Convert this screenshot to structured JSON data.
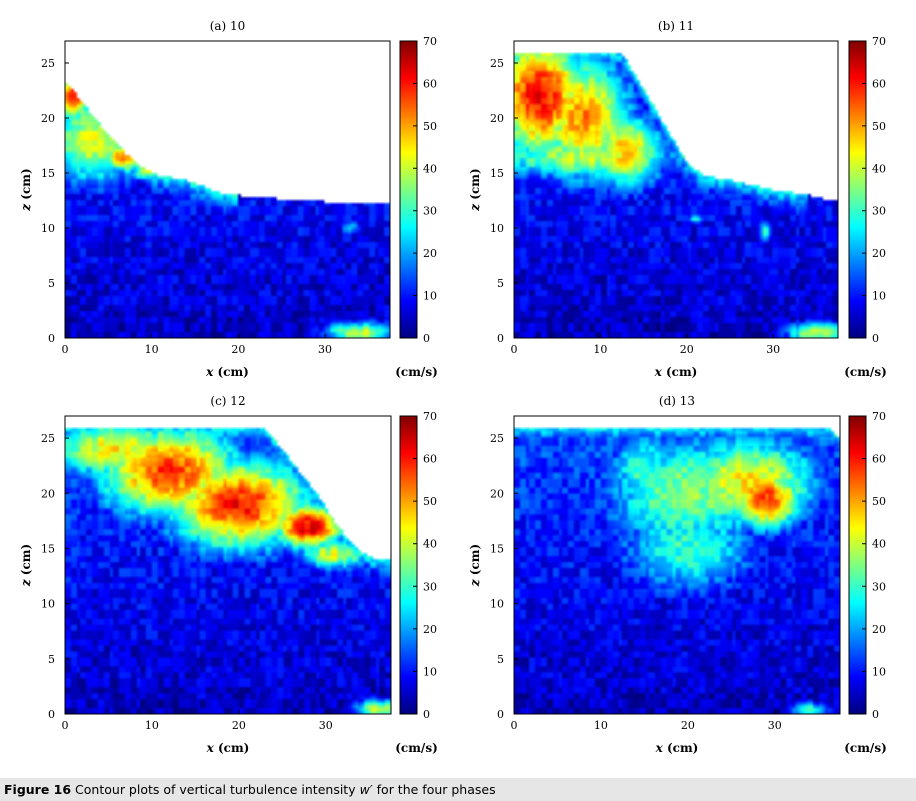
{
  "figure": {
    "caption_label": "Figure 16",
    "caption_text": "Contour plots of vertical turbulence intensity",
    "caption_var": "w′",
    "caption_tail": "for the four phases"
  },
  "chart_data": [
    {
      "type": "heatmap",
      "title": "(a) 10",
      "xlabel_var": "x",
      "xlabel_unit": "(cm)",
      "ylabel_var": "z",
      "ylabel_unit": "(cm)",
      "xlim": [
        0,
        37.5
      ],
      "ylim": [
        0,
        27
      ],
      "xticks": [
        0,
        10,
        20,
        30
      ],
      "yticks": [
        0,
        5,
        10,
        15,
        20,
        25
      ],
      "colorbar": {
        "min": 0,
        "max": 70,
        "ticks": [
          0,
          10,
          20,
          30,
          40,
          50,
          60,
          70
        ],
        "unit": "(cm/s)"
      },
      "colormap": [
        "#00007f",
        "#0000ff",
        "#007fff",
        "#00ffff",
        "#7fff7f",
        "#ffff00",
        "#ff7f00",
        "#ff0000",
        "#7f0000"
      ],
      "domain_boundary": [
        [
          0,
          23.2
        ],
        [
          1.5,
          22
        ],
        [
          3,
          20.5
        ],
        [
          5,
          18.5
        ],
        [
          7,
          16.8
        ],
        [
          9,
          15.5
        ],
        [
          11,
          14.7
        ],
        [
          13.5,
          14.5
        ],
        [
          16,
          13.8
        ],
        [
          18,
          13.2
        ],
        [
          22,
          12.8
        ],
        [
          30,
          12.4
        ],
        [
          37.5,
          12.2
        ]
      ],
      "hotspots": [
        {
          "x": 1,
          "z": 22,
          "sx": 1.5,
          "sz": 1.5,
          "v": 60
        },
        {
          "x": 3.5,
          "z": 18,
          "sx": 4,
          "sz": 3,
          "v": 42
        },
        {
          "x": 7,
          "z": 16.5,
          "sx": 2,
          "sz": 1,
          "v": 55
        },
        {
          "x": 10,
          "z": 15.2,
          "sx": 2,
          "sz": 0.7,
          "v": 40
        },
        {
          "x": 34,
          "z": 0.5,
          "sx": 3,
          "sz": 0.7,
          "v": 40
        },
        {
          "x": 33,
          "z": 10,
          "sx": 1,
          "sz": 0.5,
          "v": 22
        }
      ]
    },
    {
      "type": "heatmap",
      "title": "(b) 11",
      "xlabel_var": "x",
      "xlabel_unit": "(cm)",
      "ylabel_var": "z",
      "ylabel_unit": "(cm)",
      "xlim": [
        0,
        37.5
      ],
      "ylim": [
        0,
        27
      ],
      "xticks": [
        0,
        10,
        20,
        30
      ],
      "yticks": [
        0,
        5,
        10,
        15,
        20,
        25
      ],
      "colorbar": {
        "min": 0,
        "max": 70,
        "ticks": [
          0,
          10,
          20,
          30,
          40,
          50,
          60,
          70
        ],
        "unit": "(cm/s)"
      },
      "colormap": [
        "#00007f",
        "#0000ff",
        "#007fff",
        "#00ffff",
        "#7fff7f",
        "#ffff00",
        "#ff7f00",
        "#ff0000",
        "#7f0000"
      ],
      "domain_boundary": [
        [
          0,
          26
        ],
        [
          12.5,
          26
        ],
        [
          14,
          24
        ],
        [
          15.5,
          22
        ],
        [
          17,
          20
        ],
        [
          18.5,
          18
        ],
        [
          20,
          16
        ],
        [
          22,
          14.8
        ],
        [
          26,
          14.2
        ],
        [
          30,
          13.5
        ],
        [
          34,
          13
        ],
        [
          36.5,
          12.5
        ],
        [
          37.5,
          12.4
        ]
      ],
      "hotspots": [
        {
          "x": 3,
          "z": 22,
          "sx": 4,
          "sz": 4,
          "v": 62
        },
        {
          "x": 8,
          "z": 20,
          "sx": 4,
          "sz": 4,
          "v": 52
        },
        {
          "x": 13,
          "z": 17,
          "sx": 3,
          "sz": 2.5,
          "v": 48
        },
        {
          "x": 8,
          "z": 16.5,
          "sx": 8,
          "sz": 1.5,
          "v": 40
        },
        {
          "x": 21,
          "z": 10.8,
          "sx": 0.6,
          "sz": 0.3,
          "v": 28
        },
        {
          "x": 29,
          "z": 9.7,
          "sx": 0.6,
          "sz": 0.8,
          "v": 28
        },
        {
          "x": 35,
          "z": 0.5,
          "sx": 2.5,
          "sz": 0.7,
          "v": 40
        }
      ]
    },
    {
      "type": "heatmap",
      "title": "(c) 12",
      "xlabel_var": "x",
      "xlabel_unit": "(cm)",
      "ylabel_var": "z",
      "ylabel_unit": "(cm)",
      "xlim": [
        0,
        37.5
      ],
      "ylim": [
        0,
        27
      ],
      "xticks": [
        0,
        10,
        20,
        30
      ],
      "yticks": [
        0,
        5,
        10,
        15,
        20,
        25
      ],
      "colorbar": {
        "min": 0,
        "max": 70,
        "ticks": [
          0,
          10,
          20,
          30,
          40,
          50,
          60,
          70
        ],
        "unit": "(cm/s)"
      },
      "colormap": [
        "#00007f",
        "#0000ff",
        "#007fff",
        "#00ffff",
        "#7fff7f",
        "#ffff00",
        "#ff7f00",
        "#ff0000",
        "#7f0000"
      ],
      "domain_boundary": [
        [
          0,
          26
        ],
        [
          23,
          26
        ],
        [
          25,
          24
        ],
        [
          27,
          22
        ],
        [
          29,
          20
        ],
        [
          31,
          17.5
        ],
        [
          33,
          15.5
        ],
        [
          35,
          14.2
        ],
        [
          37.5,
          14
        ]
      ],
      "hotspots": [
        {
          "x": 12,
          "z": 22,
          "sx": 6,
          "sz": 3,
          "v": 58
        },
        {
          "x": 20,
          "z": 19,
          "sx": 6,
          "sz": 3,
          "v": 60
        },
        {
          "x": 28,
          "z": 17,
          "sx": 3,
          "sz": 1.5,
          "v": 64
        },
        {
          "x": 6,
          "z": 24,
          "sx": 6,
          "sz": 2,
          "v": 45
        },
        {
          "x": 31,
          "z": 14.5,
          "sx": 3,
          "sz": 1,
          "v": 42
        },
        {
          "x": 36,
          "z": 0.5,
          "sx": 2,
          "sz": 0.6,
          "v": 40
        }
      ]
    },
    {
      "type": "heatmap",
      "title": "(d) 13",
      "xlabel_var": "x",
      "xlabel_unit": "(cm)",
      "ylabel_var": "z",
      "ylabel_unit": "(cm)",
      "xlim": [
        0,
        37.5
      ],
      "ylim": [
        0,
        27
      ],
      "xticks": [
        0,
        10,
        20,
        30
      ],
      "yticks": [
        0,
        5,
        10,
        15,
        20,
        25
      ],
      "colorbar": {
        "min": 0,
        "max": 70,
        "ticks": [
          0,
          10,
          20,
          30,
          40,
          50,
          60,
          70
        ],
        "unit": "(cm/s)"
      },
      "colormap": [
        "#00007f",
        "#0000ff",
        "#007fff",
        "#00ffff",
        "#7fff7f",
        "#ffff00",
        "#ff7f00",
        "#ff0000",
        "#7f0000"
      ],
      "domain_boundary": [
        [
          0,
          26
        ],
        [
          36,
          26
        ],
        [
          37.5,
          25
        ]
      ],
      "hotspots": [
        {
          "x": 29,
          "z": 19.5,
          "sx": 3,
          "sz": 2,
          "v": 58
        },
        {
          "x": 27,
          "z": 21,
          "sx": 6,
          "sz": 3,
          "v": 45
        },
        {
          "x": 20,
          "z": 20,
          "sx": 7,
          "sz": 4,
          "v": 36
        },
        {
          "x": 20,
          "z": 15,
          "sx": 6,
          "sz": 3,
          "v": 30
        },
        {
          "x": 15,
          "z": 22,
          "sx": 3,
          "sz": 3,
          "v": 30
        },
        {
          "x": 34,
          "z": 0.4,
          "sx": 1.5,
          "sz": 0.5,
          "v": 30
        }
      ]
    }
  ]
}
